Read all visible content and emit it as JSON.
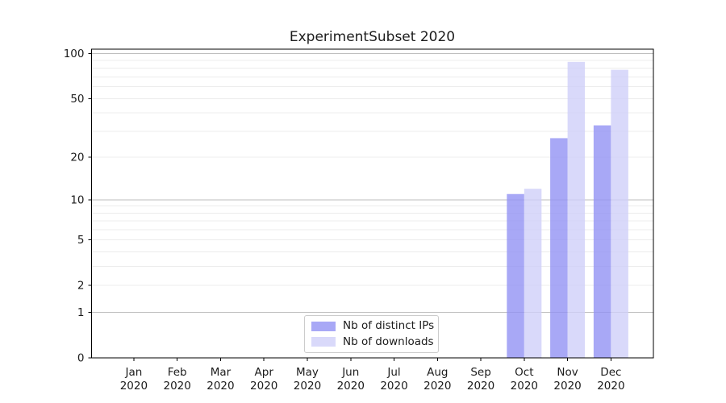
{
  "chart_data": {
    "type": "bar",
    "title": "ExperimentSubset 2020",
    "categories": [
      "Jan",
      "Feb",
      "Mar",
      "Apr",
      "May",
      "Jun",
      "Jul",
      "Aug",
      "Sep",
      "Oct",
      "Nov",
      "Dec"
    ],
    "category_year": "2020",
    "series": [
      {
        "name": "Nb of distinct IPs",
        "color": "#a8a8f6",
        "values": [
          0,
          0,
          0,
          0,
          0,
          0,
          0,
          0,
          0,
          11,
          27,
          33
        ]
      },
      {
        "name": "Nb of downloads",
        "color": "#d9d9fa",
        "values": [
          0,
          0,
          0,
          0,
          0,
          0,
          0,
          0,
          0,
          12,
          88,
          78
        ]
      }
    ],
    "yscale": "log1p",
    "ylim": [
      0,
      107
    ],
    "y_ticks": [
      0,
      1,
      2,
      5,
      10,
      20,
      50,
      100
    ],
    "y_major_gridlines": [
      1,
      10,
      100
    ],
    "y_minor_gridlines": [
      2,
      3,
      4,
      5,
      6,
      7,
      8,
      9,
      20,
      30,
      40,
      50,
      60,
      70,
      80,
      90
    ],
    "grid": true,
    "legend_position": "lower center",
    "colors": {
      "spine": "#000000",
      "tick_text": "#1c1c1c",
      "grid_minor": "#ececec",
      "grid_major": "#bdbdbd"
    }
  }
}
